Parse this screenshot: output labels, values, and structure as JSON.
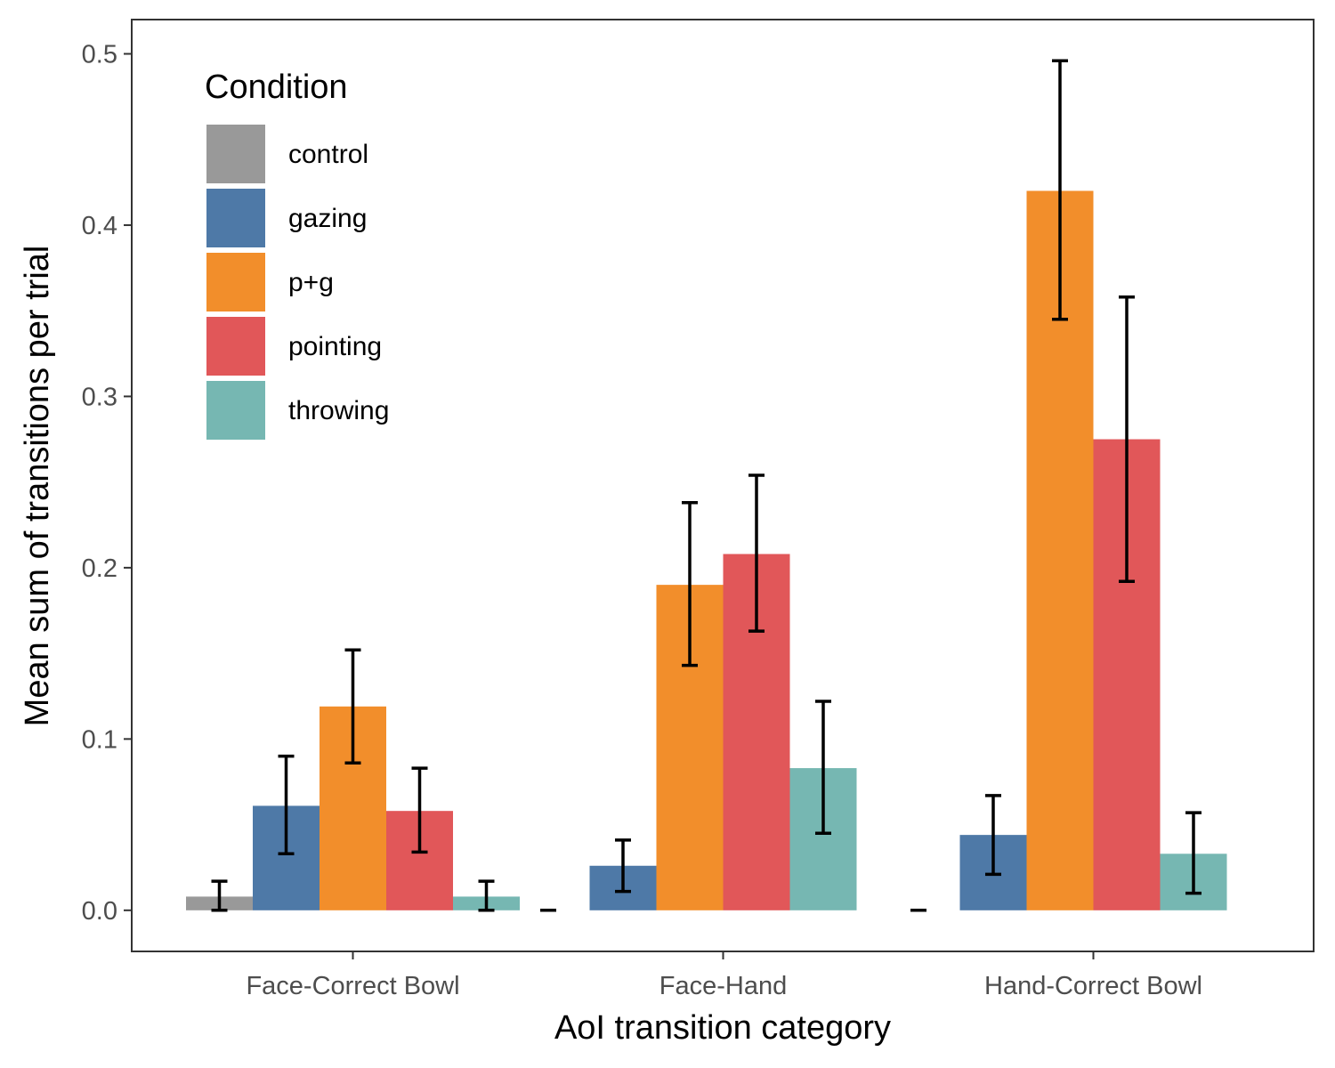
{
  "chart_data": {
    "type": "bar",
    "xlabel": "AoI transition category",
    "ylabel": "Mean sum of transitions per trial",
    "categories": [
      "Face-Correct Bowl",
      "Face-Hand",
      "Hand-Correct Bowl"
    ],
    "ylim": [
      -0.024,
      0.52
    ],
    "yticks": [
      "0.0",
      "0.1",
      "0.2",
      "0.3",
      "0.4",
      "0.5"
    ],
    "ytick_values": [
      0,
      0.1,
      0.2,
      0.3,
      0.4,
      0.5
    ],
    "grid": false,
    "legend": {
      "title": "Condition",
      "position": "top-left inside"
    },
    "series": [
      {
        "name": "control",
        "color": "#999999",
        "values": [
          0.008,
          0.0,
          0.0
        ],
        "err_low": [
          0.0,
          0.0,
          0.0
        ],
        "err_high": [
          0.017,
          0.0,
          0.0
        ]
      },
      {
        "name": "gazing",
        "color": "#4e79a7",
        "values": [
          0.061,
          0.026,
          0.044
        ],
        "err_low": [
          0.033,
          0.011,
          0.021
        ],
        "err_high": [
          0.09,
          0.041,
          0.067
        ]
      },
      {
        "name": "p+g",
        "color": "#f28e2b",
        "values": [
          0.119,
          0.19,
          0.42
        ],
        "err_low": [
          0.086,
          0.143,
          0.345
        ],
        "err_high": [
          0.152,
          0.238,
          0.496
        ]
      },
      {
        "name": "pointing",
        "color": "#e15759",
        "values": [
          0.058,
          0.208,
          0.275
        ],
        "err_low": [
          0.034,
          0.163,
          0.192
        ],
        "err_high": [
          0.083,
          0.254,
          0.358
        ]
      },
      {
        "name": "throwing",
        "color": "#76b7b2",
        "values": [
          0.008,
          0.083,
          0.033
        ],
        "err_low": [
          0.0,
          0.045,
          0.01
        ],
        "err_high": [
          0.017,
          0.122,
          0.057
        ]
      }
    ]
  }
}
